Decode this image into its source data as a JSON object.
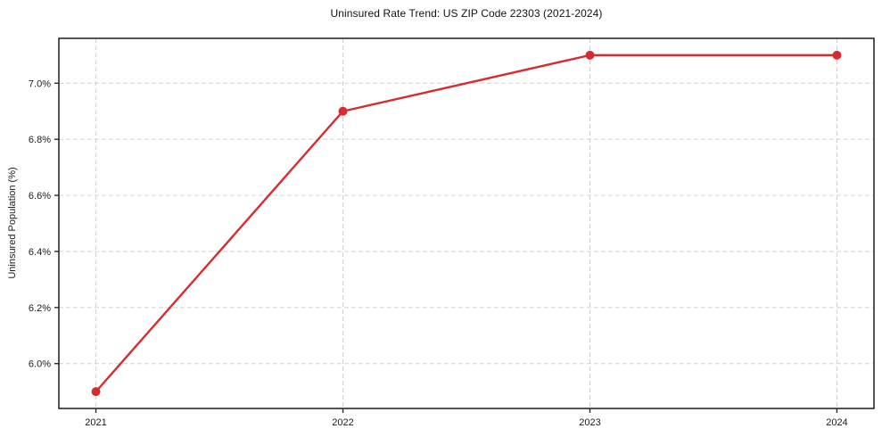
{
  "chart_data": {
    "type": "line",
    "title": "Uninsured Rate Trend: US ZIP Code 22303 (2021-2024)",
    "xlabel": "",
    "ylabel": "Uninsured Population (%)",
    "x": [
      2021,
      2022,
      2023,
      2024
    ],
    "series": [
      {
        "name": "Uninsured rate",
        "values": [
          5.9,
          6.9,
          7.1,
          7.1
        ]
      }
    ],
    "xticks": {
      "values": [
        2021,
        2022,
        2023,
        2024
      ],
      "labels": [
        "2021",
        "2022",
        "2023",
        "2024"
      ]
    },
    "yticks": {
      "values": [
        6.0,
        6.2,
        6.4,
        6.6,
        6.8,
        7.0
      ],
      "labels": [
        "6.0%",
        "6.2%",
        "6.4%",
        "6.6%",
        "6.8%",
        "7.0%"
      ]
    },
    "xlim": [
      2020.85,
      2024.15
    ],
    "ylim": [
      5.84,
      7.16
    ],
    "grid": true,
    "grid_style": "dashed",
    "legend": false,
    "colors": {
      "line": "#d62b2f",
      "marker": "#d62b2f",
      "grid": "#d0d0d0",
      "spine": "#2a2a2a",
      "text": "#1a1a1a"
    }
  }
}
